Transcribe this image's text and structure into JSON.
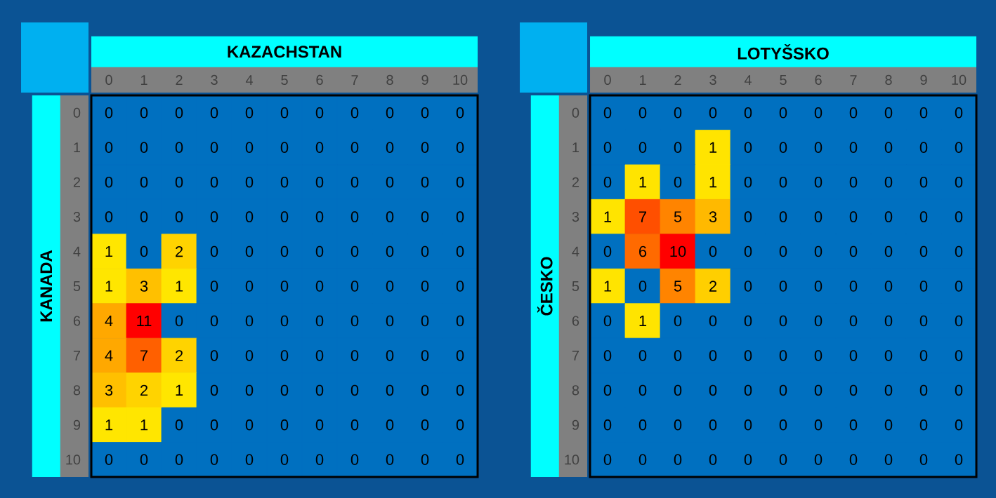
{
  "chart_data": [
    {
      "type": "heatmap",
      "xlabel": "KAZACHSTAN",
      "ylabel": "KANADA",
      "data_labels": true,
      "categories": [
        "0",
        "1",
        "2",
        "3",
        "4",
        "5",
        "6",
        "7",
        "8",
        "9",
        "10"
      ],
      "y_categories": [
        "0",
        "1",
        "2",
        "3",
        "4",
        "5",
        "6",
        "7",
        "8",
        "9",
        "10"
      ],
      "cells": [
        [
          0,
          0,
          0,
          0,
          0,
          0,
          0,
          0,
          0,
          0,
          0
        ],
        [
          0,
          0,
          0,
          0,
          0,
          0,
          0,
          0,
          0,
          0,
          0
        ],
        [
          0,
          0,
          0,
          0,
          0,
          0,
          0,
          0,
          0,
          0,
          0
        ],
        [
          0,
          0,
          0,
          0,
          0,
          0,
          0,
          0,
          0,
          0,
          0
        ],
        [
          1,
          0,
          2,
          0,
          0,
          0,
          0,
          0,
          0,
          0,
          0
        ],
        [
          1,
          3,
          1,
          0,
          0,
          0,
          0,
          0,
          0,
          0,
          0
        ],
        [
          4,
          11,
          0,
          0,
          0,
          0,
          0,
          0,
          0,
          0,
          0
        ],
        [
          4,
          7,
          2,
          0,
          0,
          0,
          0,
          0,
          0,
          0,
          0
        ],
        [
          3,
          2,
          1,
          0,
          0,
          0,
          0,
          0,
          0,
          0,
          0
        ],
        [
          1,
          1,
          0,
          0,
          0,
          0,
          0,
          0,
          0,
          0,
          0
        ],
        [
          0,
          0,
          0,
          0,
          0,
          0,
          0,
          0,
          0,
          0,
          0
        ]
      ]
    },
    {
      "type": "heatmap",
      "xlabel": "LOTYŠSKO",
      "ylabel": "ČESKO",
      "data_labels": true,
      "categories": [
        "0",
        "1",
        "2",
        "3",
        "4",
        "5",
        "6",
        "7",
        "8",
        "9",
        "10"
      ],
      "y_categories": [
        "0",
        "1",
        "2",
        "3",
        "4",
        "5",
        "6",
        "7",
        "8",
        "9",
        "10"
      ],
      "cells": [
        [
          0,
          0,
          0,
          0,
          0,
          0,
          0,
          0,
          0,
          0,
          0
        ],
        [
          0,
          0,
          0,
          1,
          0,
          0,
          0,
          0,
          0,
          0,
          0
        ],
        [
          0,
          1,
          0,
          1,
          0,
          0,
          0,
          0,
          0,
          0,
          0
        ],
        [
          1,
          7,
          5,
          3,
          0,
          0,
          0,
          0,
          0,
          0,
          0
        ],
        [
          0,
          6,
          10,
          0,
          0,
          0,
          0,
          0,
          0,
          0,
          0
        ],
        [
          1,
          0,
          5,
          2,
          0,
          0,
          0,
          0,
          0,
          0,
          0
        ],
        [
          0,
          1,
          0,
          0,
          0,
          0,
          0,
          0,
          0,
          0,
          0
        ],
        [
          0,
          0,
          0,
          0,
          0,
          0,
          0,
          0,
          0,
          0,
          0
        ],
        [
          0,
          0,
          0,
          0,
          0,
          0,
          0,
          0,
          0,
          0,
          0
        ],
        [
          0,
          0,
          0,
          0,
          0,
          0,
          0,
          0,
          0,
          0,
          0
        ],
        [
          0,
          0,
          0,
          0,
          0,
          0,
          0,
          0,
          0,
          0,
          0
        ]
      ]
    }
  ]
}
